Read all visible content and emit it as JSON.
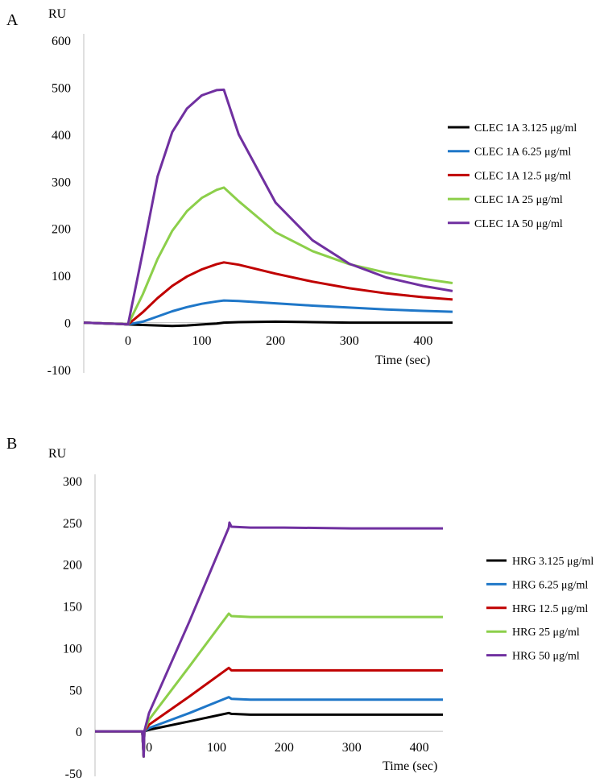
{
  "figure": {
    "panel_a_label": "A",
    "panel_b_label": "B"
  },
  "colors": {
    "black": "#000000",
    "blue": "#1f77c8",
    "red": "#c00000",
    "green": "#8ccf4a",
    "purple": "#7030a0"
  },
  "chart_data": [
    {
      "type": "line",
      "panel": "A",
      "ylabel": "RU",
      "xlabel": "Time (sec)",
      "xlim": [
        -60,
        440
      ],
      "ylim": [
        -100,
        600
      ],
      "xticks": [
        0,
        100,
        200,
        300,
        400
      ],
      "yticks": [
        -100,
        0,
        100,
        200,
        300,
        400,
        500,
        600
      ],
      "xtick_labels": [
        "0",
        "100",
        "200",
        "300",
        "400"
      ],
      "ytick_labels": [
        "-100",
        "0",
        "100",
        "200",
        "300",
        "400",
        "500",
        "600"
      ],
      "legend_position": "right",
      "series": [
        {
          "name": "CLEC 1A  3.125 μg/ml",
          "color": "#000000",
          "x": [
            -60,
            -10,
            0,
            20,
            40,
            60,
            80,
            100,
            120,
            130,
            150,
            200,
            250,
            300,
            350,
            400,
            440
          ],
          "y": [
            0,
            -3,
            -4,
            -5,
            -6,
            -7,
            -6,
            -4,
            -2,
            0,
            1,
            2,
            1,
            0,
            0,
            0,
            0
          ]
        },
        {
          "name": "CLEC 1A  6.25 μg/ml",
          "color": "#1f77c8",
          "x": [
            -60,
            -10,
            0,
            20,
            40,
            60,
            80,
            100,
            120,
            130,
            150,
            200,
            250,
            300,
            350,
            400,
            440
          ],
          "y": [
            0,
            -3,
            -4,
            2,
            13,
            24,
            33,
            40,
            45,
            47,
            46,
            41,
            36,
            32,
            28,
            25,
            23
          ]
        },
        {
          "name": "CLEC 1A  12.5 μg/ml",
          "color": "#c00000",
          "x": [
            -60,
            -10,
            0,
            20,
            40,
            60,
            80,
            100,
            120,
            130,
            150,
            200,
            250,
            300,
            350,
            400,
            440
          ],
          "y": [
            0,
            -3,
            -4,
            22,
            52,
            78,
            98,
            113,
            124,
            128,
            123,
            104,
            87,
            73,
            62,
            54,
            49
          ]
        },
        {
          "name": "CLEC 1A  25 μg/ml",
          "color": "#8ccf4a",
          "x": [
            -60,
            -10,
            0,
            20,
            40,
            60,
            80,
            100,
            120,
            130,
            150,
            200,
            250,
            300,
            350,
            400,
            440
          ],
          "y": [
            0,
            -3,
            -4,
            60,
            135,
            195,
            237,
            265,
            282,
            287,
            258,
            192,
            152,
            124,
            106,
            93,
            84
          ]
        },
        {
          "name": "CLEC 1A   50 μg/ml",
          "color": "#7030a0",
          "x": [
            -60,
            -10,
            0,
            20,
            40,
            60,
            80,
            100,
            120,
            130,
            150,
            200,
            250,
            300,
            350,
            400,
            440
          ],
          "y": [
            0,
            -3,
            -4,
            150,
            310,
            405,
            455,
            483,
            494,
            495,
            400,
            255,
            175,
            125,
            96,
            78,
            67
          ]
        }
      ]
    },
    {
      "type": "line",
      "panel": "B",
      "ylabel": "RU",
      "xlabel": "Time (sec)",
      "xlim": [
        -80,
        435
      ],
      "ylim": [
        -50,
        300
      ],
      "xticks": [
        0,
        100,
        200,
        300,
        400
      ],
      "yticks": [
        -50,
        0,
        50,
        100,
        150,
        200,
        250,
        300
      ],
      "xtick_labels": [
        "0",
        "100",
        "200",
        "300",
        "400"
      ],
      "ytick_labels": [
        "-50",
        "0",
        "50",
        "100",
        "150",
        "200",
        "250",
        "300"
      ],
      "legend_position": "right",
      "series": [
        {
          "name": "HRG  3.125 μg/ml",
          "color": "#000000",
          "x": [
            -80,
            -10,
            -8,
            -7,
            0,
            60,
            118,
            122,
            150,
            200,
            300,
            400,
            435
          ],
          "y": [
            0,
            0,
            -30,
            0,
            2,
            12,
            22,
            21,
            20,
            20,
            20,
            20,
            20
          ]
        },
        {
          "name": "HRG 6.25 μg/ml",
          "color": "#1f77c8",
          "x": [
            -80,
            -10,
            -8,
            -7,
            0,
            60,
            118,
            122,
            150,
            200,
            300,
            400,
            435
          ],
          "y": [
            0,
            0,
            -30,
            0,
            4,
            22,
            41,
            39,
            38,
            38,
            38,
            38,
            38
          ]
        },
        {
          "name": "HRG 12.5 μg/ml",
          "color": "#c00000",
          "x": [
            -80,
            -10,
            -8,
            -7,
            0,
            60,
            118,
            122,
            150,
            200,
            300,
            400,
            435
          ],
          "y": [
            0,
            0,
            -30,
            0,
            8,
            42,
            76,
            73,
            73,
            73,
            73,
            73,
            73
          ]
        },
        {
          "name": "HRG 25 μg/ml",
          "color": "#8ccf4a",
          "x": [
            -80,
            -10,
            -8,
            -7,
            0,
            60,
            118,
            122,
            150,
            200,
            300,
            400,
            435
          ],
          "y": [
            0,
            0,
            -30,
            0,
            14,
            78,
            141,
            138,
            137,
            137,
            137,
            137,
            137
          ]
        },
        {
          "name": "HRG 50 μg/ml",
          "color": "#7030a0",
          "x": [
            -80,
            -10,
            -8,
            -7,
            0,
            60,
            118,
            119,
            122,
            150,
            200,
            300,
            400,
            435
          ],
          "y": [
            0,
            0,
            -30,
            0,
            22,
            132,
            244,
            250,
            245,
            244,
            244,
            243,
            243,
            243
          ]
        }
      ]
    }
  ]
}
